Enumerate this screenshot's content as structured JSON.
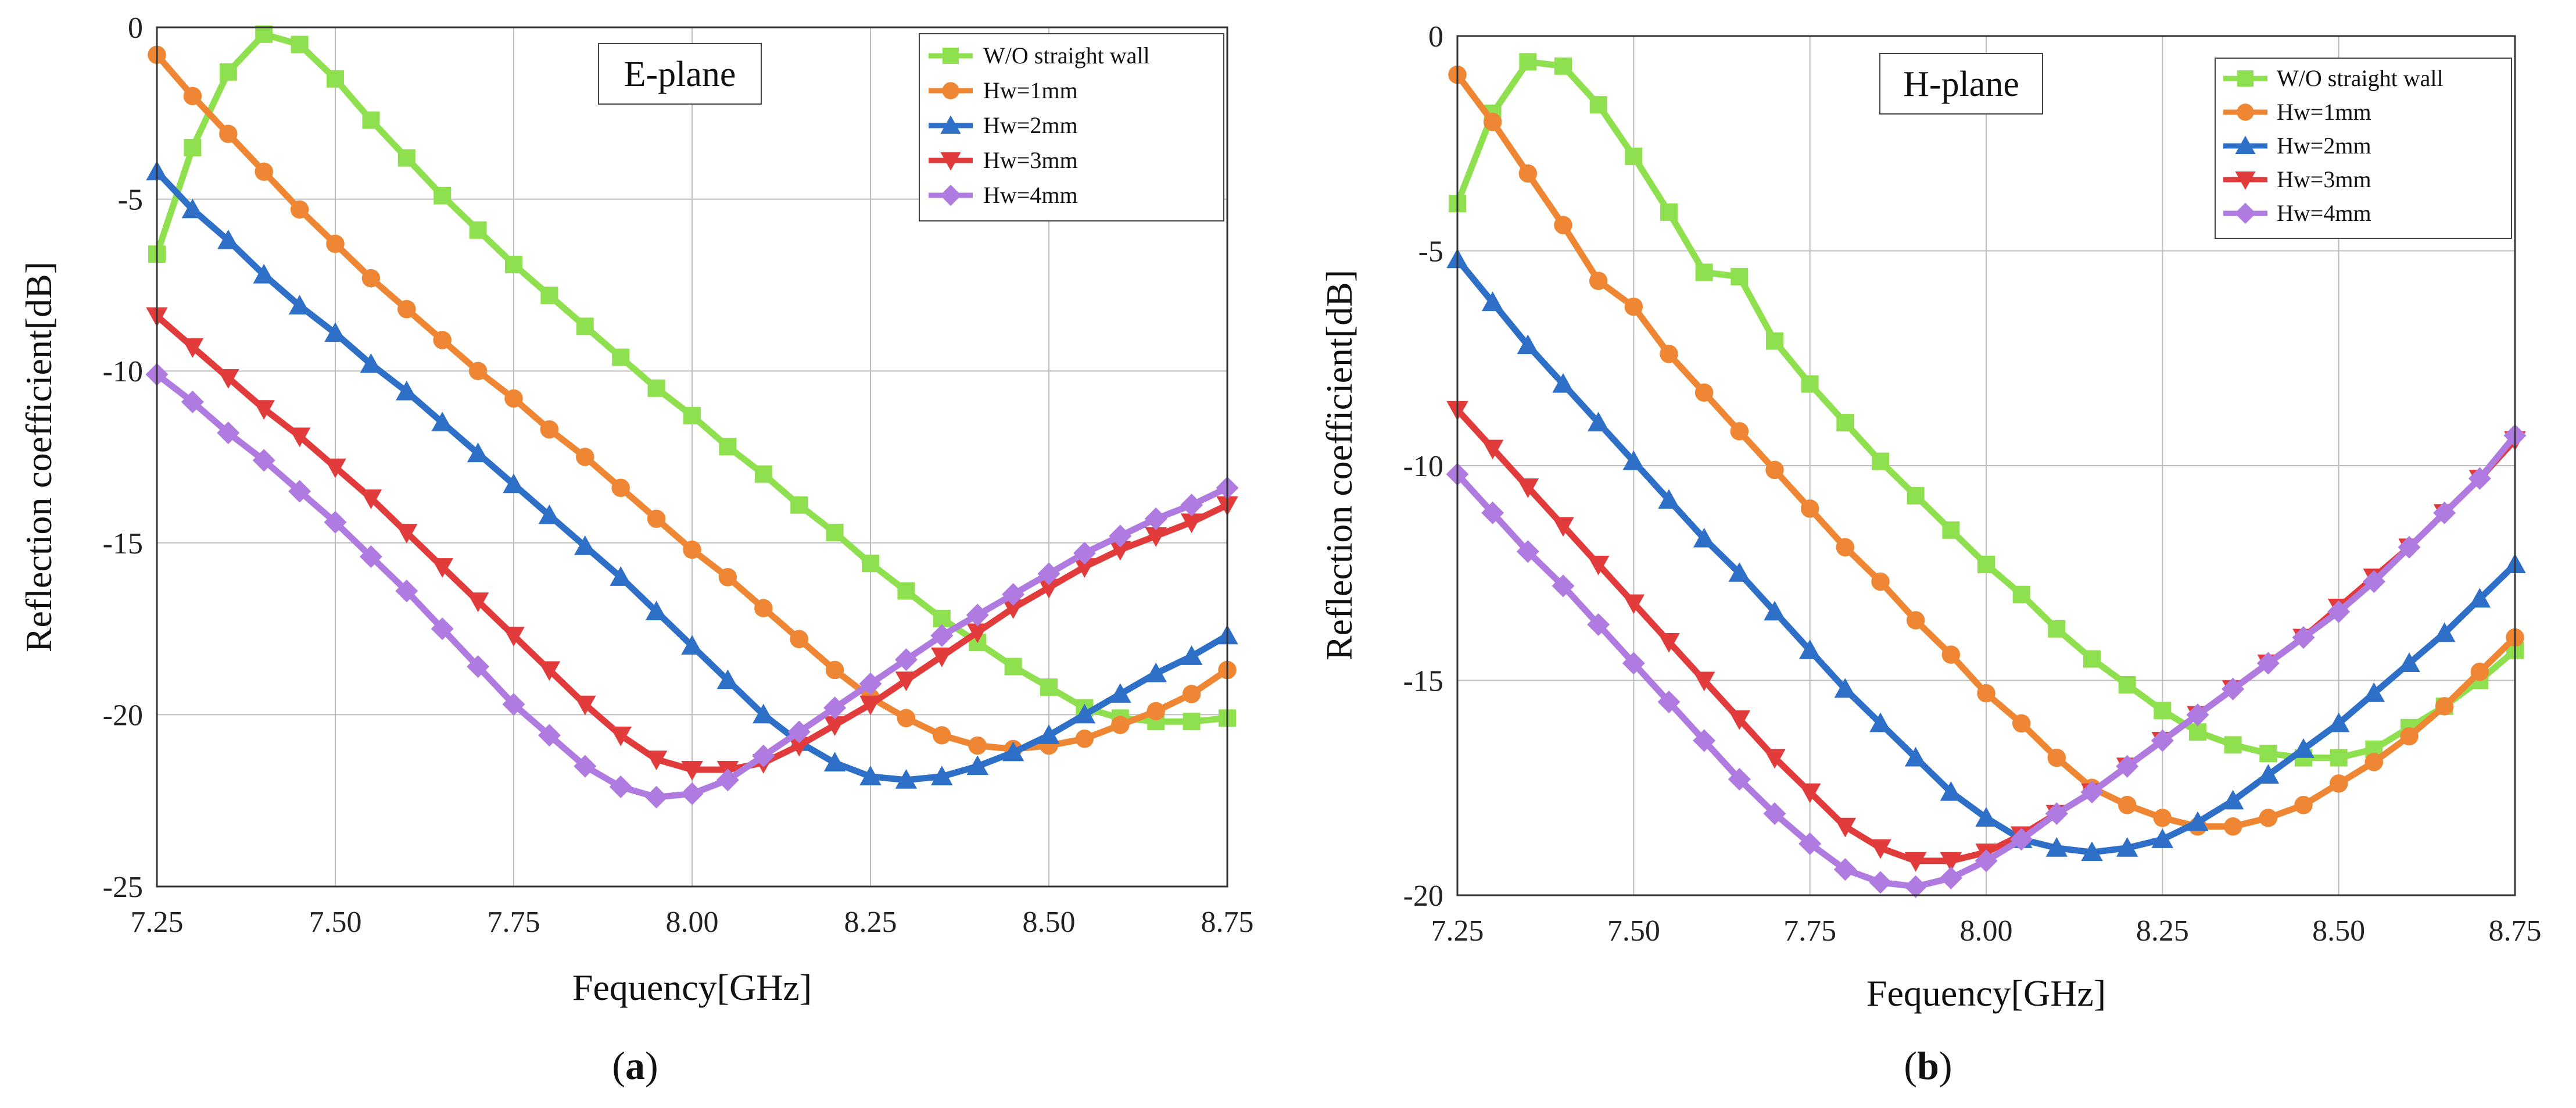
{
  "chart_data": [
    {
      "type": "line",
      "title": "E-plane",
      "caption": "a",
      "xlabel": "Fequency[GHz]",
      "ylabel": "Reflection coefficient[dB]",
      "xlim": [
        7.25,
        8.75
      ],
      "ylim": [
        -25,
        0
      ],
      "xticks": [
        "7.25",
        "7.50",
        "7.75",
        "8.00",
        "8.25",
        "8.50",
        "8.75"
      ],
      "yticks": [
        "0",
        "-5",
        "-10",
        "-15",
        "-20",
        "-25"
      ],
      "legend_position": "top-right",
      "x": [
        7.25,
        7.3,
        7.35,
        7.4,
        7.45,
        7.5,
        7.55,
        7.6,
        7.65,
        7.7,
        7.75,
        7.8,
        7.85,
        7.9,
        7.95,
        8.0,
        8.05,
        8.1,
        8.15,
        8.2,
        8.25,
        8.3,
        8.35,
        8.4,
        8.45,
        8.5,
        8.55,
        8.6,
        8.65,
        8.7,
        8.75
      ],
      "series": [
        {
          "name": "W/O straight wall",
          "color": "#8fe04e",
          "marker": "square",
          "values": [
            -6.6,
            -3.5,
            -1.3,
            -0.2,
            -0.5,
            -1.5,
            -2.7,
            -3.8,
            -4.9,
            -5.9,
            -6.9,
            -7.8,
            -8.7,
            -9.6,
            -10.5,
            -11.3,
            -12.2,
            -13.0,
            -13.9,
            -14.7,
            -15.6,
            -16.4,
            -17.2,
            -17.9,
            -18.6,
            -19.2,
            -19.8,
            -20.1,
            -20.2,
            -20.2,
            -20.1
          ]
        },
        {
          "name": "Hw=1mm",
          "color": "#ee8633",
          "marker": "circle",
          "values": [
            -0.8,
            -2.0,
            -3.1,
            -4.2,
            -5.3,
            -6.3,
            -7.3,
            -8.2,
            -9.1,
            -10.0,
            -10.8,
            -11.7,
            -12.5,
            -13.4,
            -14.3,
            -15.2,
            -16.0,
            -16.9,
            -17.8,
            -18.7,
            -19.5,
            -20.1,
            -20.6,
            -20.9,
            -21.0,
            -20.9,
            -20.7,
            -20.3,
            -19.9,
            -19.4,
            -18.7
          ]
        },
        {
          "name": "Hw=2mm",
          "color": "#2e6fc7",
          "marker": "triangle-up",
          "values": [
            -4.2,
            -5.3,
            -6.2,
            -7.2,
            -8.1,
            -8.9,
            -9.8,
            -10.6,
            -11.5,
            -12.4,
            -13.3,
            -14.2,
            -15.1,
            -16.0,
            -17.0,
            -18.0,
            -19.0,
            -20.0,
            -20.8,
            -21.4,
            -21.8,
            -21.9,
            -21.8,
            -21.5,
            -21.1,
            -20.6,
            -20.0,
            -19.4,
            -18.8,
            -18.3,
            -17.7
          ]
        },
        {
          "name": "Hw=3mm",
          "color": "#e23b3b",
          "marker": "triangle-down",
          "values": [
            -8.4,
            -9.3,
            -10.2,
            -11.1,
            -11.9,
            -12.8,
            -13.7,
            -14.7,
            -15.7,
            -16.7,
            -17.7,
            -18.7,
            -19.7,
            -20.6,
            -21.3,
            -21.6,
            -21.6,
            -21.4,
            -20.9,
            -20.3,
            -19.7,
            -19.0,
            -18.3,
            -17.6,
            -16.9,
            -16.3,
            -15.7,
            -15.2,
            -14.8,
            -14.4,
            -13.9
          ]
        },
        {
          "name": "Hw=4mm",
          "color": "#b07be0",
          "marker": "diamond",
          "values": [
            -10.1,
            -10.9,
            -11.8,
            -12.6,
            -13.5,
            -14.4,
            -15.4,
            -16.4,
            -17.5,
            -18.6,
            -19.7,
            -20.6,
            -21.5,
            -22.1,
            -22.4,
            -22.3,
            -21.9,
            -21.2,
            -20.5,
            -19.8,
            -19.1,
            -18.4,
            -17.7,
            -17.1,
            -16.5,
            -15.9,
            -15.3,
            -14.8,
            -14.3,
            -13.9,
            -13.4
          ]
        }
      ]
    },
    {
      "type": "line",
      "title": "H-plane",
      "caption": "b",
      "xlabel": "Fequency[GHz]",
      "ylabel": "Reflection coefficient[dB]",
      "xlim": [
        7.25,
        8.75
      ],
      "ylim": [
        -20,
        0
      ],
      "xticks": [
        "7.25",
        "7.50",
        "7.75",
        "8.00",
        "8.25",
        "8.50",
        "8.75"
      ],
      "yticks": [
        "0",
        "-5",
        "-10",
        "-15",
        "-20"
      ],
      "legend_position": "top-right",
      "x": [
        7.25,
        7.3,
        7.35,
        7.4,
        7.45,
        7.5,
        7.55,
        7.6,
        7.65,
        7.7,
        7.75,
        7.8,
        7.85,
        7.9,
        7.95,
        8.0,
        8.05,
        8.1,
        8.15,
        8.2,
        8.25,
        8.3,
        8.35,
        8.4,
        8.45,
        8.5,
        8.55,
        8.6,
        8.65,
        8.7,
        8.75
      ],
      "series": [
        {
          "name": "W/O straight wall",
          "color": "#8fe04e",
          "marker": "square",
          "values": [
            -3.9,
            -1.8,
            -0.6,
            -0.7,
            -1.6,
            -2.8,
            -4.1,
            -5.5,
            -5.6,
            -7.1,
            -8.1,
            -9.0,
            -9.9,
            -10.7,
            -11.5,
            -12.3,
            -13.0,
            -13.8,
            -14.5,
            -15.1,
            -15.7,
            -16.2,
            -16.5,
            -16.7,
            -16.8,
            -16.8,
            -16.6,
            -16.1,
            -15.6,
            -15.0,
            -14.3
          ]
        },
        {
          "name": "Hw=1mm",
          "color": "#ee8633",
          "marker": "circle",
          "values": [
            -0.9,
            -2.0,
            -3.2,
            -4.4,
            -5.7,
            -6.3,
            -7.4,
            -8.3,
            -9.2,
            -10.1,
            -11.0,
            -11.9,
            -12.7,
            -13.6,
            -14.4,
            -15.3,
            -16.0,
            -16.8,
            -17.5,
            -17.9,
            -18.2,
            -18.4,
            -18.4,
            -18.2,
            -17.9,
            -17.4,
            -16.9,
            -16.3,
            -15.6,
            -14.8,
            -14.0
          ]
        },
        {
          "name": "Hw=2mm",
          "color": "#2e6fc7",
          "marker": "triangle-up",
          "values": [
            -5.2,
            -6.2,
            -7.2,
            -8.1,
            -9.0,
            -9.9,
            -10.8,
            -11.7,
            -12.5,
            -13.4,
            -14.3,
            -15.2,
            -16.0,
            -16.8,
            -17.6,
            -18.2,
            -18.7,
            -18.9,
            -19.0,
            -18.9,
            -18.7,
            -18.3,
            -17.8,
            -17.2,
            -16.6,
            -16.0,
            -15.3,
            -14.6,
            -13.9,
            -13.1,
            -12.3
          ]
        },
        {
          "name": "Hw=3mm",
          "color": "#e23b3b",
          "marker": "triangle-down",
          "values": [
            -8.7,
            -9.6,
            -10.5,
            -11.4,
            -12.3,
            -13.2,
            -14.1,
            -15.0,
            -15.9,
            -16.8,
            -17.6,
            -18.4,
            -18.9,
            -19.2,
            -19.2,
            -19.0,
            -18.6,
            -18.1,
            -17.6,
            -17.0,
            -16.4,
            -15.8,
            -15.2,
            -14.6,
            -14.0,
            -13.3,
            -12.6,
            -11.9,
            -11.1,
            -10.3,
            -9.4
          ]
        },
        {
          "name": "Hw=4mm",
          "color": "#b07be0",
          "marker": "diamond",
          "values": [
            -10.2,
            -11.1,
            -12.0,
            -12.8,
            -13.7,
            -14.6,
            -15.5,
            -16.4,
            -17.3,
            -18.1,
            -18.8,
            -19.4,
            -19.7,
            -19.8,
            -19.6,
            -19.2,
            -18.7,
            -18.1,
            -17.6,
            -17.0,
            -16.4,
            -15.8,
            -15.2,
            -14.6,
            -14.0,
            -13.4,
            -12.7,
            -11.9,
            -11.1,
            -10.3,
            -9.3
          ]
        }
      ]
    }
  ]
}
